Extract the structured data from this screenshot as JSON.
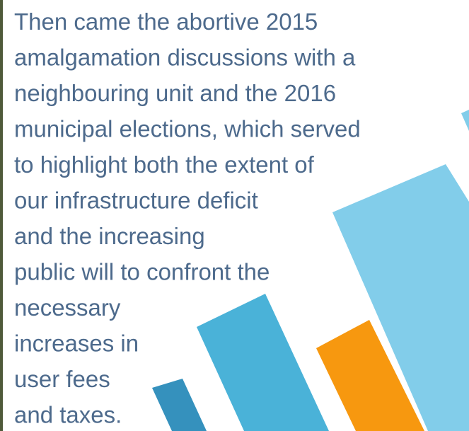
{
  "paragraph": {
    "lines": [
      "Then came the abortive 2015",
      "amalgamation discussions with a",
      "neighbouring unit and the 2016",
      "municipal elections, which served",
      "to highlight both the extent of",
      "our infrastructure deficit",
      "and the increasing",
      "public will to confront the",
      "necessary",
      "increases in",
      "user fees",
      "and taxes."
    ]
  }
}
